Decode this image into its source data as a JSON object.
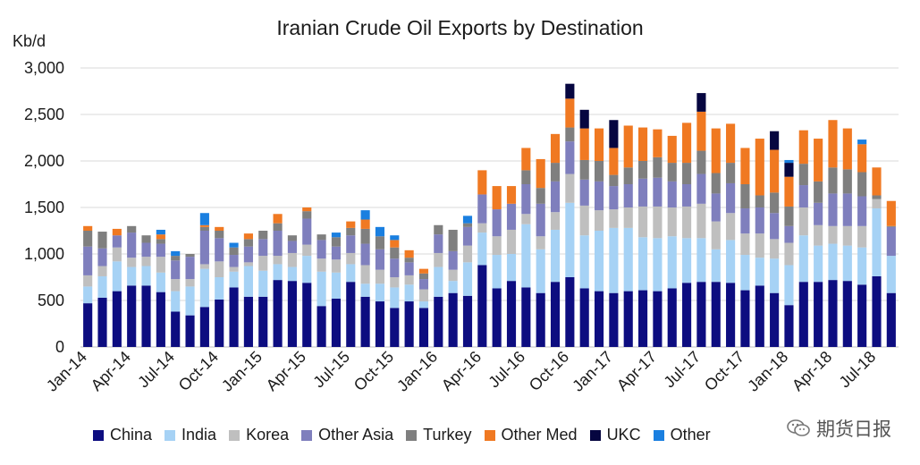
{
  "chart_data": {
    "type": "bar",
    "stacked": true,
    "title": "Iranian Crude Oil Exports by Destination",
    "ylabel": "Kb/d",
    "ylim": [
      0,
      3000
    ],
    "yticks": [
      "0",
      "500",
      "1,000",
      "1,500",
      "2,000",
      "2,500",
      "3,000"
    ],
    "ytick_values": [
      0,
      500,
      1000,
      1500,
      2000,
      2500,
      3000
    ],
    "grid": true,
    "legend_position": "bottom",
    "x_tick_labels": [
      "Jan-14",
      "Apr-14",
      "Jul-14",
      "Oct-14",
      "Jan-15",
      "Apr-15",
      "Jul-15",
      "Oct-15",
      "Jan-16",
      "Apr-16",
      "Jul-16",
      "Oct-16",
      "Jan-17",
      "Apr-17",
      "Jul-17",
      "Oct-17",
      "Jan-18",
      "Apr-18",
      "Jul-18"
    ],
    "x_tick_every": 3,
    "categories": [
      "Jan-14",
      "Feb-14",
      "Mar-14",
      "Apr-14",
      "May-14",
      "Jun-14",
      "Jul-14",
      "Aug-14",
      "Sep-14",
      "Oct-14",
      "Nov-14",
      "Dec-14",
      "Jan-15",
      "Feb-15",
      "Mar-15",
      "Apr-15",
      "May-15",
      "Jun-15",
      "Jul-15",
      "Aug-15",
      "Sep-15",
      "Oct-15",
      "Nov-15",
      "Dec-15",
      "Jan-16",
      "Feb-16",
      "Mar-16",
      "Apr-16",
      "May-16",
      "Jun-16",
      "Jul-16",
      "Aug-16",
      "Sep-16",
      "Oct-16",
      "Nov-16",
      "Dec-16",
      "Jan-17",
      "Feb-17",
      "Mar-17",
      "Apr-17",
      "May-17",
      "Jun-17",
      "Jul-17",
      "Aug-17",
      "Sep-17",
      "Oct-17",
      "Nov-17",
      "Dec-17",
      "Jan-18",
      "Feb-18",
      "Mar-18",
      "Apr-18",
      "May-18",
      "Jun-18",
      "Jul-18",
      "Aug-18"
    ],
    "series": [
      {
        "name": "China",
        "color": "#0d0d80",
        "values": [
          470,
          530,
          600,
          660,
          660,
          590,
          380,
          340,
          430,
          510,
          640,
          540,
          540,
          720,
          710,
          690,
          440,
          520,
          700,
          540,
          490,
          420,
          490,
          420,
          540,
          580,
          550,
          880,
          630,
          710,
          640,
          580,
          700,
          750,
          630,
          600,
          580,
          600,
          610,
          600,
          630,
          690,
          700,
          700,
          690,
          610,
          660,
          580,
          450,
          700,
          700,
          720,
          710,
          670,
          760,
          580
        ]
      },
      {
        "name": "India",
        "color": "#a6d2f5",
        "values": [
          180,
          230,
          320,
          200,
          210,
          210,
          220,
          310,
          410,
          240,
          170,
          330,
          280,
          170,
          150,
          290,
          370,
          280,
          190,
          140,
          190,
          220,
          180,
          70,
          320,
          130,
          360,
          350,
          360,
          290,
          680,
          470,
          560,
          800,
          570,
          650,
          700,
          680,
          570,
          570,
          560,
          480,
          470,
          350,
          460,
          380,
          300,
          370,
          430,
          500,
          390,
          390,
          380,
          400,
          730,
          400
        ]
      },
      {
        "name": "Korea",
        "color": "#bfbfbf",
        "values": [
          120,
          110,
          150,
          100,
          100,
          170,
          130,
          80,
          50,
          170,
          50,
          40,
          160,
          90,
          150,
          120,
          140,
          140,
          120,
          200,
          150,
          110,
          100,
          130,
          150,
          120,
          180,
          100,
          200,
          260,
          110,
          140,
          190,
          310,
          320,
          220,
          200,
          220,
          330,
          340,
          310,
          340,
          370,
          300,
          290,
          230,
          260,
          210,
          240,
          300,
          220,
          190,
          210,
          230,
          100,
          0
        ]
      },
      {
        "name": "Other Asia",
        "color": "#7f7fbd",
        "values": [
          310,
          190,
          130,
          270,
          150,
          140,
          200,
          240,
          360,
          250,
          130,
          170,
          180,
          270,
          130,
          280,
          200,
          140,
          190,
          230,
          220,
          200,
          140,
          110,
          200,
          200,
          200,
          310,
          290,
          280,
          320,
          350,
          330,
          350,
          280,
          310,
          250,
          250,
          300,
          310,
          280,
          240,
          320,
          300,
          320,
          270,
          280,
          280,
          180,
          240,
          240,
          350,
          350,
          320,
          0,
          310
        ]
      },
      {
        "name": "Turkey",
        "color": "#7f7f7f",
        "values": [
          170,
          180,
          0,
          70,
          80,
          50,
          50,
          30,
          40,
          80,
          80,
          80,
          90,
          80,
          60,
          80,
          60,
          100,
          80,
          160,
          140,
          120,
          50,
          60,
          100,
          230,
          40,
          0,
          0,
          0,
          150,
          170,
          200,
          150,
          210,
          220,
          120,
          180,
          190,
          220,
          200,
          230,
          250,
          220,
          220,
          260,
          130,
          220,
          210,
          230,
          230,
          280,
          260,
          260,
          40,
          10
        ]
      },
      {
        "name": "Other Med",
        "color": "#f07922",
        "values": [
          50,
          0,
          70,
          0,
          0,
          50,
          0,
          0,
          20,
          40,
          0,
          60,
          0,
          100,
          0,
          40,
          0,
          0,
          70,
          100,
          0,
          80,
          80,
          50,
          0,
          0,
          0,
          260,
          250,
          190,
          240,
          310,
          310,
          310,
          340,
          350,
          290,
          450,
          360,
          300,
          290,
          430,
          420,
          480,
          420,
          390,
          610,
          460,
          320,
          360,
          460,
          510,
          440,
          300,
          300,
          270
        ]
      },
      {
        "name": "UKC",
        "color": "#060640",
        "values": [
          0,
          0,
          0,
          0,
          0,
          0,
          0,
          0,
          0,
          0,
          0,
          0,
          0,
          0,
          0,
          0,
          0,
          0,
          0,
          0,
          0,
          0,
          0,
          0,
          0,
          0,
          0,
          0,
          0,
          0,
          0,
          0,
          0,
          160,
          200,
          0,
          300,
          0,
          0,
          0,
          0,
          0,
          200,
          0,
          0,
          0,
          0,
          200,
          150,
          0,
          0,
          0,
          0,
          0,
          0,
          0
        ]
      },
      {
        "name": "Other",
        "color": "#1a7fe0",
        "values": [
          0,
          0,
          0,
          0,
          0,
          50,
          50,
          0,
          130,
          0,
          50,
          0,
          0,
          0,
          0,
          0,
          0,
          50,
          0,
          100,
          100,
          50,
          0,
          0,
          0,
          0,
          80,
          0,
          0,
          0,
          0,
          0,
          0,
          0,
          0,
          0,
          0,
          0,
          0,
          0,
          0,
          0,
          0,
          0,
          0,
          0,
          0,
          0,
          30,
          0,
          0,
          0,
          0,
          50,
          0,
          0
        ]
      }
    ]
  },
  "watermark": {
    "text": "期货日报",
    "icon": "wechat-icon"
  }
}
